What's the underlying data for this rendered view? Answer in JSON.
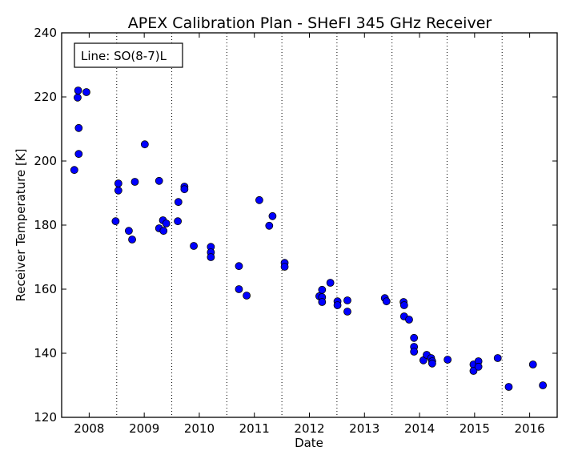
{
  "chart_data": {
    "type": "scatter",
    "title": "APEX Calibration Plan - SHeFI 345 GHz Receiver",
    "xlabel": "Date",
    "ylabel": "Receiver Temperature [K]",
    "legend_box": "Line: SO(8-7)L",
    "xlim": [
      2007.5,
      2016.5
    ],
    "ylim": [
      120,
      240
    ],
    "x_ticks": [
      2008,
      2009,
      2010,
      2011,
      2012,
      2013,
      2014,
      2015,
      2016
    ],
    "x_tick_labels": [
      "2008",
      "2009",
      "2010",
      "2011",
      "2012",
      "2013",
      "2014",
      "2015",
      "2016"
    ],
    "y_ticks": [
      120,
      140,
      160,
      180,
      200,
      220,
      240
    ],
    "y_tick_labels": [
      "120",
      "140",
      "160",
      "180",
      "200",
      "220",
      "240"
    ],
    "vertical_gridlines_dotted": [
      2008.5,
      2009.5,
      2010.5,
      2011.5,
      2012.5,
      2013.5,
      2014.5,
      2015.5
    ],
    "marker": "circle",
    "marker_color": "#0000ff",
    "series": [
      {
        "points": [
          {
            "x": 2007.73,
            "y": 197.2
          },
          {
            "x": 2007.79,
            "y": 219.8
          },
          {
            "x": 2007.8,
            "y": 222.0
          },
          {
            "x": 2007.81,
            "y": 210.3
          },
          {
            "x": 2007.81,
            "y": 202.2
          },
          {
            "x": 2007.95,
            "y": 221.5
          },
          {
            "x": 2008.48,
            "y": 181.2
          },
          {
            "x": 2008.53,
            "y": 193.0
          },
          {
            "x": 2008.53,
            "y": 190.8
          },
          {
            "x": 2008.72,
            "y": 178.2
          },
          {
            "x": 2008.78,
            "y": 175.5
          },
          {
            "x": 2008.83,
            "y": 193.5
          },
          {
            "x": 2009.01,
            "y": 205.2
          },
          {
            "x": 2009.27,
            "y": 193.8
          },
          {
            "x": 2009.27,
            "y": 179.0
          },
          {
            "x": 2009.34,
            "y": 181.5
          },
          {
            "x": 2009.35,
            "y": 178.2
          },
          {
            "x": 2009.4,
            "y": 180.5
          },
          {
            "x": 2009.61,
            "y": 181.2
          },
          {
            "x": 2009.62,
            "y": 187.2
          },
          {
            "x": 2009.73,
            "y": 192.0
          },
          {
            "x": 2009.73,
            "y": 191.2
          },
          {
            "x": 2009.9,
            "y": 173.5
          },
          {
            "x": 2010.21,
            "y": 173.2
          },
          {
            "x": 2010.21,
            "y": 171.5
          },
          {
            "x": 2010.21,
            "y": 170.0
          },
          {
            "x": 2010.72,
            "y": 167.2
          },
          {
            "x": 2010.72,
            "y": 160.0
          },
          {
            "x": 2010.86,
            "y": 158.0
          },
          {
            "x": 2011.09,
            "y": 187.8
          },
          {
            "x": 2011.27,
            "y": 179.8
          },
          {
            "x": 2011.33,
            "y": 182.8
          },
          {
            "x": 2011.55,
            "y": 168.2
          },
          {
            "x": 2011.55,
            "y": 167.0
          },
          {
            "x": 2012.18,
            "y": 157.8
          },
          {
            "x": 2012.23,
            "y": 159.8
          },
          {
            "x": 2012.23,
            "y": 157.5
          },
          {
            "x": 2012.23,
            "y": 156.0
          },
          {
            "x": 2012.38,
            "y": 162.0
          },
          {
            "x": 2012.51,
            "y": 156.2
          },
          {
            "x": 2012.51,
            "y": 155.0
          },
          {
            "x": 2012.69,
            "y": 156.5
          },
          {
            "x": 2012.69,
            "y": 153.0
          },
          {
            "x": 2013.37,
            "y": 157.2
          },
          {
            "x": 2013.4,
            "y": 156.2
          },
          {
            "x": 2013.71,
            "y": 156.0
          },
          {
            "x": 2013.72,
            "y": 155.0
          },
          {
            "x": 2013.72,
            "y": 151.5
          },
          {
            "x": 2013.81,
            "y": 150.5
          },
          {
            "x": 2013.9,
            "y": 144.8
          },
          {
            "x": 2013.9,
            "y": 142.0
          },
          {
            "x": 2013.9,
            "y": 140.5
          },
          {
            "x": 2014.07,
            "y": 137.8
          },
          {
            "x": 2014.13,
            "y": 139.5
          },
          {
            "x": 2014.21,
            "y": 138.5
          },
          {
            "x": 2014.23,
            "y": 137.5
          },
          {
            "x": 2014.23,
            "y": 136.8
          },
          {
            "x": 2014.51,
            "y": 138.0
          },
          {
            "x": 2014.98,
            "y": 136.5
          },
          {
            "x": 2014.98,
            "y": 134.5
          },
          {
            "x": 2015.07,
            "y": 137.5
          },
          {
            "x": 2015.07,
            "y": 135.8
          },
          {
            "x": 2015.42,
            "y": 138.5
          },
          {
            "x": 2015.62,
            "y": 129.5
          },
          {
            "x": 2016.06,
            "y": 136.5
          },
          {
            "x": 2016.24,
            "y": 130.0
          }
        ]
      }
    ]
  }
}
